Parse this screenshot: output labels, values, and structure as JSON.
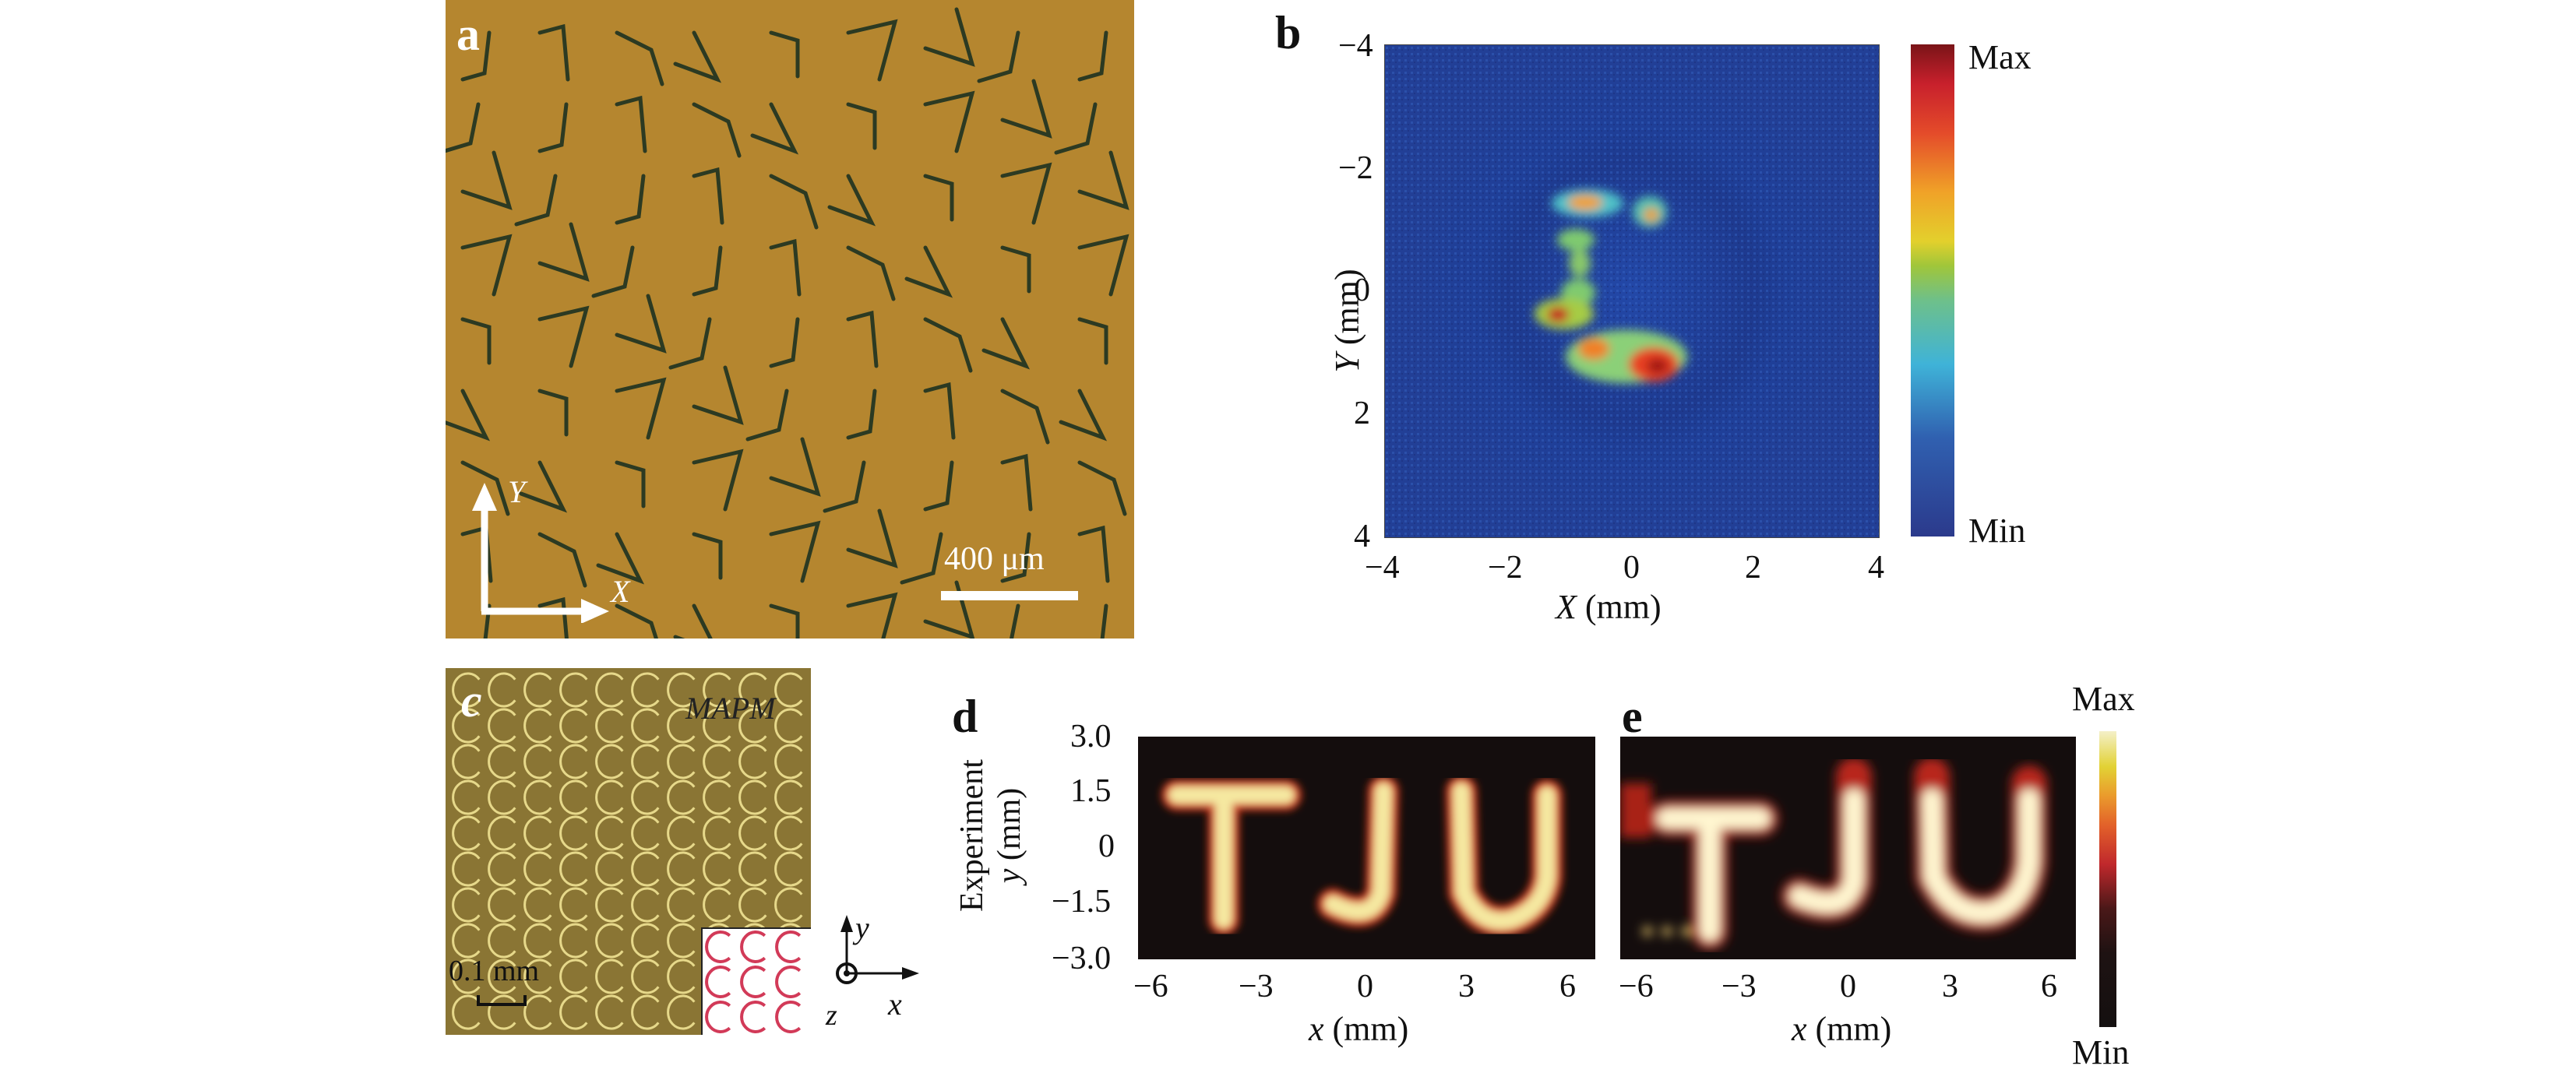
{
  "figure": {
    "panels": {
      "a": {
        "label": "a",
        "type": "optical-micrograph",
        "axis_y_label": "Y",
        "axis_x_label": "X",
        "scalebar_label": "400 μm",
        "background_color": "#b5862f"
      },
      "b": {
        "label": "b",
        "colorbar": {
          "max_label": "Max",
          "min_label": "Min"
        }
      },
      "c": {
        "label": "c",
        "title": "MAPM",
        "scalebar_label": "0.1 mm",
        "axes": {
          "y": "y",
          "x": "x",
          "z": "z"
        },
        "background_color": "#8a7534"
      },
      "d": {
        "label": "d",
        "row_label": "Experiment"
      },
      "e": {
        "label": "e",
        "colorbar": {
          "max_label": "Max",
          "min_label": "Min"
        }
      }
    }
  },
  "chart_data": [
    {
      "panel": "b",
      "type": "heatmap",
      "title": "",
      "xlabel": "X (mm)",
      "ylabel": "Y (mm)",
      "xlim": [
        -4,
        4
      ],
      "ylim": [
        4,
        -4
      ],
      "x_ticks": [
        "−4",
        "−2",
        "0",
        "2",
        "4"
      ],
      "y_ticks": [
        "−4",
        "−2",
        "0",
        "2",
        "4"
      ],
      "colormap": "jet",
      "colorbar_labels": [
        "Max",
        "Min"
      ],
      "description": "Noisy intensity image forming a 'C'-shaped bright pattern centered near (0, 0)"
    },
    {
      "panel": "d",
      "type": "heatmap",
      "xlabel": "x (mm)",
      "ylabel": "y (mm)",
      "row_label": "Experiment",
      "xlim": [
        -6.8,
        6.8
      ],
      "ylim": [
        -3.0,
        3.0
      ],
      "x_ticks": [
        "−6",
        "−3",
        "0",
        "3",
        "6"
      ],
      "y_ticks": [
        "3.0",
        "1.5",
        "0",
        "−1.5",
        "−3.0"
      ],
      "colormap": "hot",
      "image_text": "TJU"
    },
    {
      "panel": "e",
      "type": "heatmap",
      "xlabel": "x (mm)",
      "xlim": [
        -6.8,
        6.8
      ],
      "x_ticks": [
        "−6",
        "−3",
        "0",
        "3",
        "6"
      ],
      "colormap": "hot",
      "colorbar_labels": [
        "Max",
        "Min"
      ],
      "image_text": "TJU"
    }
  ],
  "labels": {
    "b_xlabel_var": "X",
    "b_xlabel_unit": " (mm)",
    "b_ylabel_var": "Y",
    "b_ylabel_unit": " (mm)",
    "d_ylabel_var": "y",
    "d_ylabel_unit": " (mm)",
    "d_xlabel_var": "x",
    "d_xlabel_unit": " (mm)",
    "e_xlabel_var": "x",
    "e_xlabel_unit": " (mm)",
    "tick_b": [
      "−4",
      "−2",
      "0",
      "2",
      "4"
    ],
    "tick_d_x": [
      "−6",
      "−3",
      "0",
      "3",
      "6"
    ],
    "tick_d_y": [
      "3.0",
      "1.5",
      "0",
      "−1.5",
      "−3.0"
    ]
  }
}
